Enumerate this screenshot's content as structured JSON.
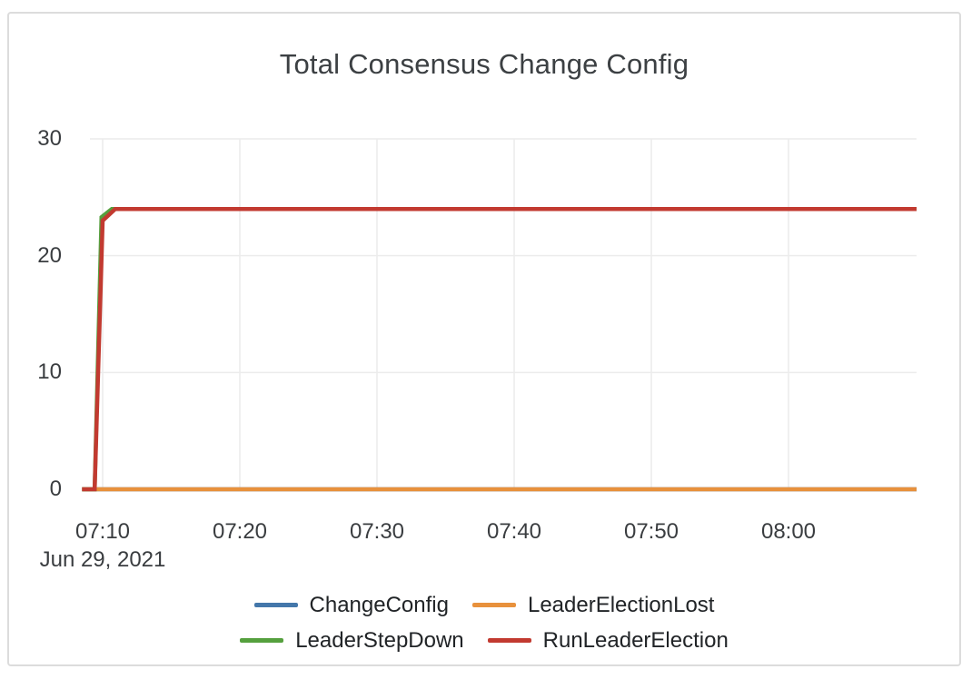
{
  "card": {
    "background": "#ffffff",
    "border_color": "#dcdcdc"
  },
  "colors": {
    "grid_line": "#ececec",
    "axis_text": "#3a3d40",
    "title_text": "#3c4043",
    "legend_text": "#212427"
  },
  "chart_data": {
    "type": "line",
    "title": "Total Consensus Change Config",
    "x_axis": {
      "tick_labels": [
        "07:10",
        "07:20",
        "07:30",
        "07:40",
        "07:50",
        "08:00"
      ],
      "date_label": "Jun 29, 2021",
      "range_time": [
        "07:08:30",
        "08:09:20"
      ]
    },
    "y_axis": {
      "tick_values": [
        0,
        10,
        20,
        30
      ],
      "range": [
        0,
        30
      ]
    },
    "grid": true,
    "legend_position": "bottom",
    "legend_columns": 2,
    "series": [
      {
        "name": "ChangeConfig",
        "color": "#4477aa",
        "points": [
          [
            "07:08:30",
            0
          ],
          [
            "08:09:20",
            0
          ]
        ]
      },
      {
        "name": "LeaderElectionLost",
        "color": "#e8913c",
        "points": [
          [
            "07:08:30",
            0
          ],
          [
            "08:09:20",
            0
          ]
        ]
      },
      {
        "name": "LeaderStepDown",
        "color": "#55a03e",
        "points": [
          [
            "07:08:30",
            0
          ],
          [
            "07:09:25",
            0
          ],
          [
            "07:09:55",
            23.3
          ],
          [
            "07:10:40",
            24
          ],
          [
            "08:09:20",
            24
          ]
        ]
      },
      {
        "name": "RunLeaderElection",
        "color": "#c23a30",
        "points": [
          [
            "07:08:30",
            0
          ],
          [
            "07:09:25",
            0
          ],
          [
            "07:10:00",
            23
          ],
          [
            "07:10:55",
            24
          ],
          [
            "08:09:20",
            24
          ]
        ]
      }
    ]
  }
}
